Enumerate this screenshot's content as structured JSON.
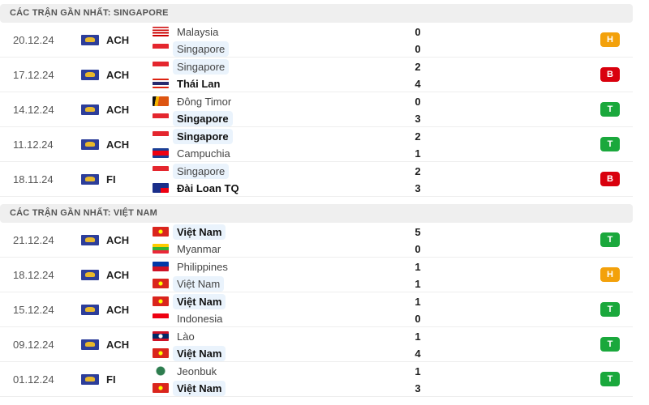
{
  "colors": {
    "H": "#f3a10b",
    "B": "#d9000d",
    "T": "#1aa83c"
  },
  "flags": {
    "Malaysia": "linear-gradient(#c00 0 14%,#fff 14% 28%,#c00 28% 42%,#fff 42% 56%,#c00 56% 70%,#fff 70% 84%,#c00 84%)",
    "Singapore": "linear-gradient(#e4262e 0 50%,#fff 50%)",
    "Thái Lan": "linear-gradient(#d21 0 17%,#fff 17% 33%,#2a2a6e 33% 67%,#fff 67% 83%,#d21 83%)",
    "Đông Timor": "linear-gradient(100deg,#111 0 20%,#f6b400 20% 38%,#d51 38%)",
    "Campuchia": "linear-gradient(#1b3f95 0 25%,#e01 25% 75%,#1b3f95 75%)",
    "Đài Loan TQ": "linear-gradient(90deg,#1a2e8a 0 50%,transparent 50%),linear-gradient(#1a2e8a 0 50%,#e01 50%)",
    "Việt Nam": "radial-gradient(circle,#ff0 0 2px,#da251d 3px)",
    "Myanmar": "linear-gradient(#fecb00 0 33%,#34b233 33% 67%,#ea2839 67%)",
    "Philippines": "linear-gradient(#0038a8 0 50%,#ce1126 50%)",
    "Indonesia": "linear-gradient(#e01 0 50%,#fff 50%)",
    "Lào": "radial-gradient(circle,#fff 0 2px,transparent 3px),linear-gradient(#ce1126 0 25%,#002868 25% 75%,#ce1126 75%)",
    "Jeonbuk": "radial-gradient(circle,#2e7d4f 0 5px,transparent 6px)"
  },
  "sections": [
    {
      "title": "CÁC TRẬN GẦN NHẤT: SINGAPORE",
      "matches": [
        {
          "date": "20.12.24",
          "league": "ACH",
          "home": "Malaysia",
          "away": "Singapore",
          "hs": "0",
          "as": "0",
          "hl": "away",
          "winner": "",
          "result": "H"
        },
        {
          "date": "17.12.24",
          "league": "ACH",
          "home": "Singapore",
          "away": "Thái Lan",
          "hs": "2",
          "as": "4",
          "hl": "home",
          "winner": "away",
          "result": "B"
        },
        {
          "date": "14.12.24",
          "league": "ACH",
          "home": "Đông Timor",
          "away": "Singapore",
          "hs": "0",
          "as": "3",
          "hl": "away",
          "winner": "away",
          "result": "T"
        },
        {
          "date": "11.12.24",
          "league": "ACH",
          "home": "Singapore",
          "away": "Campuchia",
          "hs": "2",
          "as": "1",
          "hl": "home",
          "winner": "home",
          "result": "T"
        },
        {
          "date": "18.11.24",
          "league": "FI",
          "home": "Singapore",
          "away": "Đài Loan TQ",
          "hs": "2",
          "as": "3",
          "hl": "home",
          "winner": "away",
          "result": "B"
        }
      ]
    },
    {
      "title": "CÁC TRẬN GẦN NHẤT: VIỆT NAM",
      "matches": [
        {
          "date": "21.12.24",
          "league": "ACH",
          "home": "Việt Nam",
          "away": "Myanmar",
          "hs": "5",
          "as": "0",
          "hl": "home",
          "winner": "home",
          "result": "T"
        },
        {
          "date": "18.12.24",
          "league": "ACH",
          "home": "Philippines",
          "away": "Việt Nam",
          "hs": "1",
          "as": "1",
          "hl": "away",
          "winner": "",
          "result": "H"
        },
        {
          "date": "15.12.24",
          "league": "ACH",
          "home": "Việt Nam",
          "away": "Indonesia",
          "hs": "1",
          "as": "0",
          "hl": "home",
          "winner": "home",
          "result": "T"
        },
        {
          "date": "09.12.24",
          "league": "ACH",
          "home": "Lào",
          "away": "Việt Nam",
          "hs": "1",
          "as": "4",
          "hl": "away",
          "winner": "away",
          "result": "T"
        },
        {
          "date": "01.12.24",
          "league": "FI",
          "home": "Jeonbuk",
          "away": "Việt Nam",
          "hs": "1",
          "as": "3",
          "hl": "away",
          "winner": "away",
          "result": "T"
        }
      ]
    }
  ]
}
